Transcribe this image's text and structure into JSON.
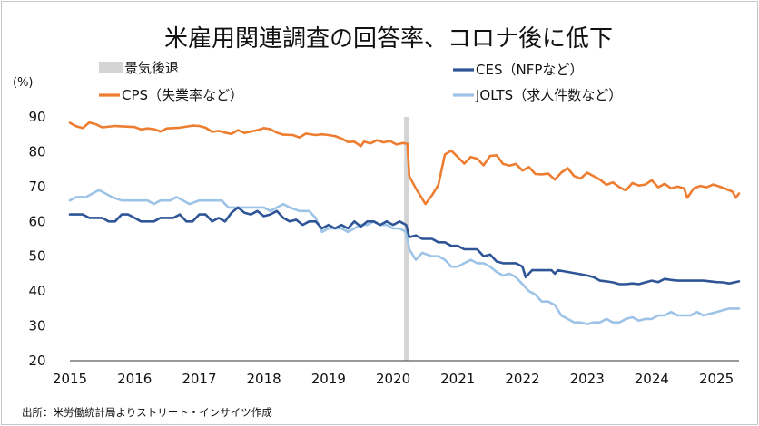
{
  "chart_data": {
    "type": "line",
    "title": "米雇用関連調査の回答率、コロナ後に低下",
    "unit_label": "(%)",
    "source": "出所：米労働統計局よりストリート・インサイツ作成",
    "ylim": [
      20,
      90
    ],
    "y_ticks": [
      20,
      30,
      40,
      50,
      60,
      70,
      80,
      90
    ],
    "xlim": [
      2015,
      2025.35
    ],
    "x_ticks": [
      2015,
      2016,
      2017,
      2018,
      2019,
      2020,
      2021,
      2022,
      2023,
      2024,
      2025
    ],
    "recession": {
      "label": "景気後退",
      "start": 2020.17,
      "end": 2020.25,
      "color": "#d4d4d4"
    },
    "series": [
      {
        "name": "CPS（失業率など）",
        "color": "#ed7d31",
        "points": [
          [
            2015.0,
            88.3
          ],
          [
            2015.1,
            87.3
          ],
          [
            2015.2,
            86.8
          ],
          [
            2015.3,
            88.4
          ],
          [
            2015.4,
            87.9
          ],
          [
            2015.5,
            87.0
          ],
          [
            2015.7,
            87.4
          ],
          [
            2015.9,
            87.2
          ],
          [
            2016.0,
            87.1
          ],
          [
            2016.1,
            86.4
          ],
          [
            2016.2,
            86.7
          ],
          [
            2016.3,
            86.5
          ],
          [
            2016.4,
            85.8
          ],
          [
            2016.5,
            86.7
          ],
          [
            2016.7,
            86.9
          ],
          [
            2016.9,
            87.5
          ],
          [
            2017.0,
            87.4
          ],
          [
            2017.1,
            86.9
          ],
          [
            2017.2,
            85.7
          ],
          [
            2017.3,
            86.0
          ],
          [
            2017.4,
            85.5
          ],
          [
            2017.5,
            85.1
          ],
          [
            2017.6,
            86.2
          ],
          [
            2017.7,
            85.4
          ],
          [
            2017.9,
            86.2
          ],
          [
            2018.0,
            86.8
          ],
          [
            2018.1,
            86.5
          ],
          [
            2018.2,
            85.5
          ],
          [
            2018.3,
            84.9
          ],
          [
            2018.45,
            84.8
          ],
          [
            2018.55,
            84.1
          ],
          [
            2018.65,
            85.2
          ],
          [
            2018.8,
            84.8
          ],
          [
            2018.9,
            85.0
          ],
          [
            2019.0,
            84.8
          ],
          [
            2019.1,
            84.5
          ],
          [
            2019.2,
            83.8
          ],
          [
            2019.3,
            82.8
          ],
          [
            2019.4,
            82.9
          ],
          [
            2019.5,
            81.6
          ],
          [
            2019.55,
            82.9
          ],
          [
            2019.65,
            82.4
          ],
          [
            2019.75,
            83.3
          ],
          [
            2019.85,
            82.7
          ],
          [
            2019.95,
            83.1
          ],
          [
            2020.05,
            82.1
          ],
          [
            2020.15,
            82.5
          ],
          [
            2020.22,
            82.3
          ],
          [
            2020.25,
            73.0
          ],
          [
            2020.35,
            69.5
          ],
          [
            2020.5,
            65.0
          ],
          [
            2020.6,
            67.5
          ],
          [
            2020.7,
            70.5
          ],
          [
            2020.8,
            79.2
          ],
          [
            2020.9,
            80.3
          ],
          [
            2021.0,
            78.5
          ],
          [
            2021.1,
            76.6
          ],
          [
            2021.2,
            78.5
          ],
          [
            2021.3,
            78.0
          ],
          [
            2021.4,
            76.1
          ],
          [
            2021.5,
            78.8
          ],
          [
            2021.6,
            79.0
          ],
          [
            2021.7,
            76.5
          ],
          [
            2021.8,
            76.0
          ],
          [
            2021.9,
            76.5
          ],
          [
            2022.0,
            74.6
          ],
          [
            2022.1,
            75.6
          ],
          [
            2022.2,
            73.6
          ],
          [
            2022.3,
            73.5
          ],
          [
            2022.4,
            73.7
          ],
          [
            2022.5,
            72.0
          ],
          [
            2022.6,
            74.0
          ],
          [
            2022.7,
            75.3
          ],
          [
            2022.8,
            73.0
          ],
          [
            2022.9,
            72.3
          ],
          [
            2023.0,
            74.0
          ],
          [
            2023.1,
            73.0
          ],
          [
            2023.2,
            72.0
          ],
          [
            2023.3,
            70.5
          ],
          [
            2023.4,
            71.2
          ],
          [
            2023.5,
            69.8
          ],
          [
            2023.6,
            68.9
          ],
          [
            2023.7,
            71.0
          ],
          [
            2023.8,
            70.3
          ],
          [
            2023.9,
            70.6
          ],
          [
            2024.0,
            71.8
          ],
          [
            2024.1,
            69.8
          ],
          [
            2024.2,
            70.8
          ],
          [
            2024.3,
            69.5
          ],
          [
            2024.4,
            70.0
          ],
          [
            2024.5,
            69.5
          ],
          [
            2024.55,
            66.8
          ],
          [
            2024.65,
            69.5
          ],
          [
            2024.75,
            70.2
          ],
          [
            2024.85,
            69.8
          ],
          [
            2024.95,
            70.6
          ],
          [
            2025.05,
            70.0
          ],
          [
            2025.15,
            69.3
          ],
          [
            2025.25,
            68.5
          ],
          [
            2025.3,
            66.8
          ],
          [
            2025.35,
            68.0
          ]
        ]
      },
      {
        "name": "CES（NFPなど）",
        "color": "#2f5597",
        "points": [
          [
            2015.0,
            62.0
          ],
          [
            2015.2,
            62.0
          ],
          [
            2015.3,
            61.0
          ],
          [
            2015.5,
            61.0
          ],
          [
            2015.6,
            60.0
          ],
          [
            2015.7,
            60.0
          ],
          [
            2015.8,
            62.0
          ],
          [
            2015.9,
            62.0
          ],
          [
            2016.0,
            61.0
          ],
          [
            2016.1,
            60.0
          ],
          [
            2016.3,
            60.0
          ],
          [
            2016.4,
            61.0
          ],
          [
            2016.6,
            61.0
          ],
          [
            2016.7,
            62.0
          ],
          [
            2016.8,
            60.0
          ],
          [
            2016.9,
            60.0
          ],
          [
            2017.0,
            62.0
          ],
          [
            2017.1,
            62.0
          ],
          [
            2017.2,
            60.0
          ],
          [
            2017.3,
            61.0
          ],
          [
            2017.4,
            60.0
          ],
          [
            2017.5,
            62.5
          ],
          [
            2017.6,
            64.0
          ],
          [
            2017.7,
            62.5
          ],
          [
            2017.8,
            62.0
          ],
          [
            2017.9,
            63.0
          ],
          [
            2018.0,
            61.5
          ],
          [
            2018.1,
            62.0
          ],
          [
            2018.2,
            63.0
          ],
          [
            2018.3,
            61.0
          ],
          [
            2018.4,
            60.0
          ],
          [
            2018.5,
            60.5
          ],
          [
            2018.6,
            59.0
          ],
          [
            2018.7,
            60.0
          ],
          [
            2018.8,
            60.0
          ],
          [
            2018.9,
            58.0
          ],
          [
            2019.0,
            59.0
          ],
          [
            2019.1,
            58.0
          ],
          [
            2019.2,
            59.0
          ],
          [
            2019.3,
            58.0
          ],
          [
            2019.4,
            60.0
          ],
          [
            2019.5,
            58.5
          ],
          [
            2019.6,
            60.0
          ],
          [
            2019.7,
            60.0
          ],
          [
            2019.8,
            59.0
          ],
          [
            2019.9,
            60.0
          ],
          [
            2020.0,
            59.0
          ],
          [
            2020.1,
            60.0
          ],
          [
            2020.2,
            59.0
          ],
          [
            2020.25,
            55.5
          ],
          [
            2020.35,
            56.0
          ],
          [
            2020.45,
            55.0
          ],
          [
            2020.6,
            55.0
          ],
          [
            2020.7,
            54.0
          ],
          [
            2020.8,
            54.0
          ],
          [
            2020.9,
            53.0
          ],
          [
            2021.0,
            53.0
          ],
          [
            2021.1,
            52.0
          ],
          [
            2021.3,
            52.0
          ],
          [
            2021.4,
            50.0
          ],
          [
            2021.5,
            50.5
          ],
          [
            2021.6,
            48.5
          ],
          [
            2021.7,
            48.0
          ],
          [
            2021.9,
            48.0
          ],
          [
            2022.0,
            47.0
          ],
          [
            2022.05,
            44.0
          ],
          [
            2022.15,
            46.0
          ],
          [
            2022.3,
            46.0
          ],
          [
            2022.45,
            46.0
          ],
          [
            2022.5,
            45.0
          ],
          [
            2022.55,
            46.0
          ],
          [
            2022.7,
            45.5
          ],
          [
            2022.85,
            45.0
          ],
          [
            2023.0,
            44.5
          ],
          [
            2023.1,
            44.0
          ],
          [
            2023.2,
            43.0
          ],
          [
            2023.3,
            42.8
          ],
          [
            2023.4,
            42.5
          ],
          [
            2023.5,
            42.0
          ],
          [
            2023.6,
            42.0
          ],
          [
            2023.7,
            42.2
          ],
          [
            2023.8,
            42.0
          ],
          [
            2023.9,
            42.5
          ],
          [
            2024.0,
            43.0
          ],
          [
            2024.1,
            42.6
          ],
          [
            2024.2,
            43.5
          ],
          [
            2024.3,
            43.2
          ],
          [
            2024.4,
            43.0
          ],
          [
            2024.6,
            43.0
          ],
          [
            2024.8,
            43.0
          ],
          [
            2025.0,
            42.6
          ],
          [
            2025.1,
            42.5
          ],
          [
            2025.2,
            42.2
          ],
          [
            2025.35,
            42.8
          ]
        ]
      },
      {
        "name": "JOLTS（求人件数など）",
        "color": "#9dc3e6",
        "points": [
          [
            2015.0,
            66.0
          ],
          [
            2015.1,
            67.0
          ],
          [
            2015.25,
            67.0
          ],
          [
            2015.35,
            68.0
          ],
          [
            2015.45,
            69.0
          ],
          [
            2015.55,
            68.0
          ],
          [
            2015.65,
            67.0
          ],
          [
            2015.8,
            66.0
          ],
          [
            2016.0,
            66.0
          ],
          [
            2016.2,
            66.0
          ],
          [
            2016.3,
            65.0
          ],
          [
            2016.4,
            66.0
          ],
          [
            2016.55,
            66.0
          ],
          [
            2016.65,
            67.0
          ],
          [
            2016.75,
            66.0
          ],
          [
            2016.85,
            65.0
          ],
          [
            2017.0,
            66.0
          ],
          [
            2017.2,
            66.0
          ],
          [
            2017.35,
            66.0
          ],
          [
            2017.45,
            64.0
          ],
          [
            2017.6,
            64.0
          ],
          [
            2017.8,
            64.0
          ],
          [
            2017.9,
            64.0
          ],
          [
            2018.0,
            64.0
          ],
          [
            2018.1,
            63.0
          ],
          [
            2018.2,
            64.0
          ],
          [
            2018.3,
            65.0
          ],
          [
            2018.4,
            64.0
          ],
          [
            2018.55,
            63.0
          ],
          [
            2018.7,
            63.0
          ],
          [
            2018.8,
            61.0
          ],
          [
            2018.9,
            57.0
          ],
          [
            2019.0,
            58.0
          ],
          [
            2019.1,
            58.0
          ],
          [
            2019.2,
            58.0
          ],
          [
            2019.3,
            57.0
          ],
          [
            2019.4,
            58.0
          ],
          [
            2019.5,
            59.0
          ],
          [
            2019.6,
            59.0
          ],
          [
            2019.7,
            60.0
          ],
          [
            2019.8,
            59.0
          ],
          [
            2019.9,
            59.0
          ],
          [
            2020.0,
            58.0
          ],
          [
            2020.1,
            58.0
          ],
          [
            2020.2,
            57.0
          ],
          [
            2020.25,
            52.0
          ],
          [
            2020.35,
            49.0
          ],
          [
            2020.45,
            51.0
          ],
          [
            2020.6,
            50.0
          ],
          [
            2020.7,
            50.0
          ],
          [
            2020.8,
            49.0
          ],
          [
            2020.9,
            47.0
          ],
          [
            2021.0,
            47.0
          ],
          [
            2021.1,
            48.0
          ],
          [
            2021.2,
            49.0
          ],
          [
            2021.3,
            48.0
          ],
          [
            2021.4,
            48.0
          ],
          [
            2021.5,
            47.0
          ],
          [
            2021.6,
            45.5
          ],
          [
            2021.7,
            44.5
          ],
          [
            2021.8,
            45.0
          ],
          [
            2021.9,
            44.0
          ],
          [
            2022.0,
            42.0
          ],
          [
            2022.1,
            40.0
          ],
          [
            2022.2,
            39.0
          ],
          [
            2022.3,
            37.0
          ],
          [
            2022.4,
            37.0
          ],
          [
            2022.5,
            36.0
          ],
          [
            2022.6,
            33.0
          ],
          [
            2022.7,
            32.0
          ],
          [
            2022.8,
            31.0
          ],
          [
            2022.9,
            31.0
          ],
          [
            2023.0,
            30.5
          ],
          [
            2023.1,
            31.0
          ],
          [
            2023.2,
            31.0
          ],
          [
            2023.3,
            32.0
          ],
          [
            2023.4,
            31.0
          ],
          [
            2023.5,
            31.0
          ],
          [
            2023.6,
            32.0
          ],
          [
            2023.7,
            32.5
          ],
          [
            2023.8,
            31.5
          ],
          [
            2023.9,
            32.0
          ],
          [
            2024.0,
            32.0
          ],
          [
            2024.1,
            33.0
          ],
          [
            2024.2,
            33.0
          ],
          [
            2024.3,
            34.0
          ],
          [
            2024.4,
            33.0
          ],
          [
            2024.5,
            33.0
          ],
          [
            2024.6,
            33.0
          ],
          [
            2024.7,
            34.0
          ],
          [
            2024.8,
            33.0
          ],
          [
            2024.9,
            33.5
          ],
          [
            2025.0,
            34.0
          ],
          [
            2025.1,
            34.5
          ],
          [
            2025.2,
            35.0
          ],
          [
            2025.35,
            35.0
          ]
        ]
      }
    ]
  }
}
